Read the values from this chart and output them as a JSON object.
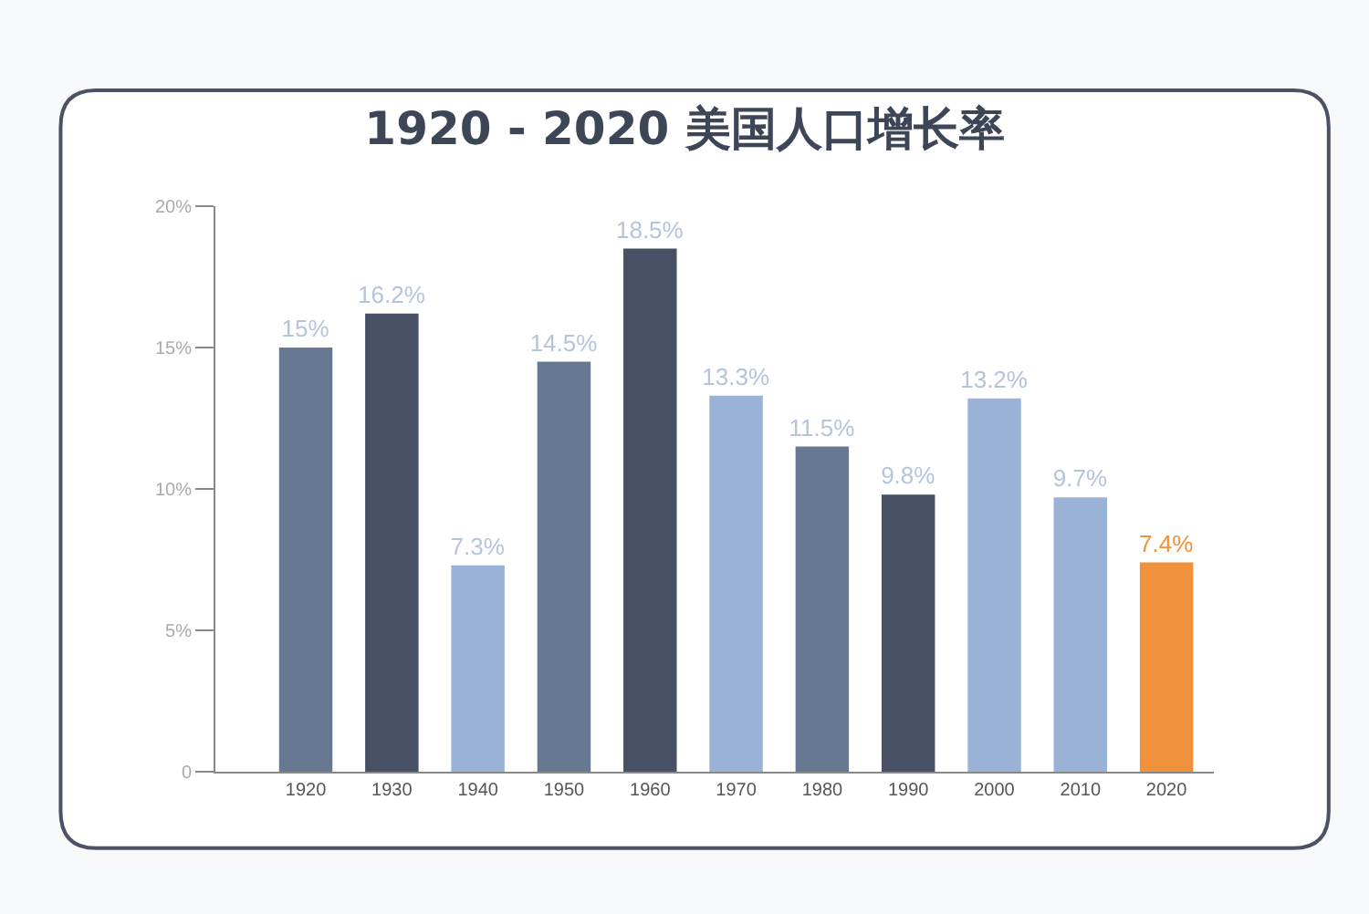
{
  "chart_data": {
    "type": "bar",
    "title": "1920 - 2020 美国人口增长率",
    "categories": [
      "1920",
      "1930",
      "1940",
      "1950",
      "1960",
      "1970",
      "1980",
      "1990",
      "2000",
      "2010",
      "2020"
    ],
    "values": [
      15,
      16.2,
      7.3,
      14.5,
      18.5,
      13.3,
      11.5,
      9.8,
      13.2,
      9.7,
      7.4
    ],
    "value_labels": [
      "15%",
      "16.2%",
      "7.3%",
      "14.5%",
      "18.5%",
      "13.3%",
      "11.5%",
      "9.8%",
      "13.2%",
      "9.7%",
      "7.4%"
    ],
    "colors": [
      "#677893",
      "#475064",
      "#9ab2d6",
      "#677893",
      "#475064",
      "#9ab2d6",
      "#677893",
      "#475064",
      "#9ab2d6",
      "#9ab2d6",
      "#f0923c"
    ],
    "ylim": [
      0,
      20
    ],
    "yticks": [
      {
        "value": 0,
        "label": "0"
      },
      {
        "value": 5,
        "label": "5%"
      },
      {
        "value": 10,
        "label": "10%"
      },
      {
        "value": 15,
        "label": "15%"
      },
      {
        "value": 20,
        "label": "20%"
      }
    ]
  }
}
